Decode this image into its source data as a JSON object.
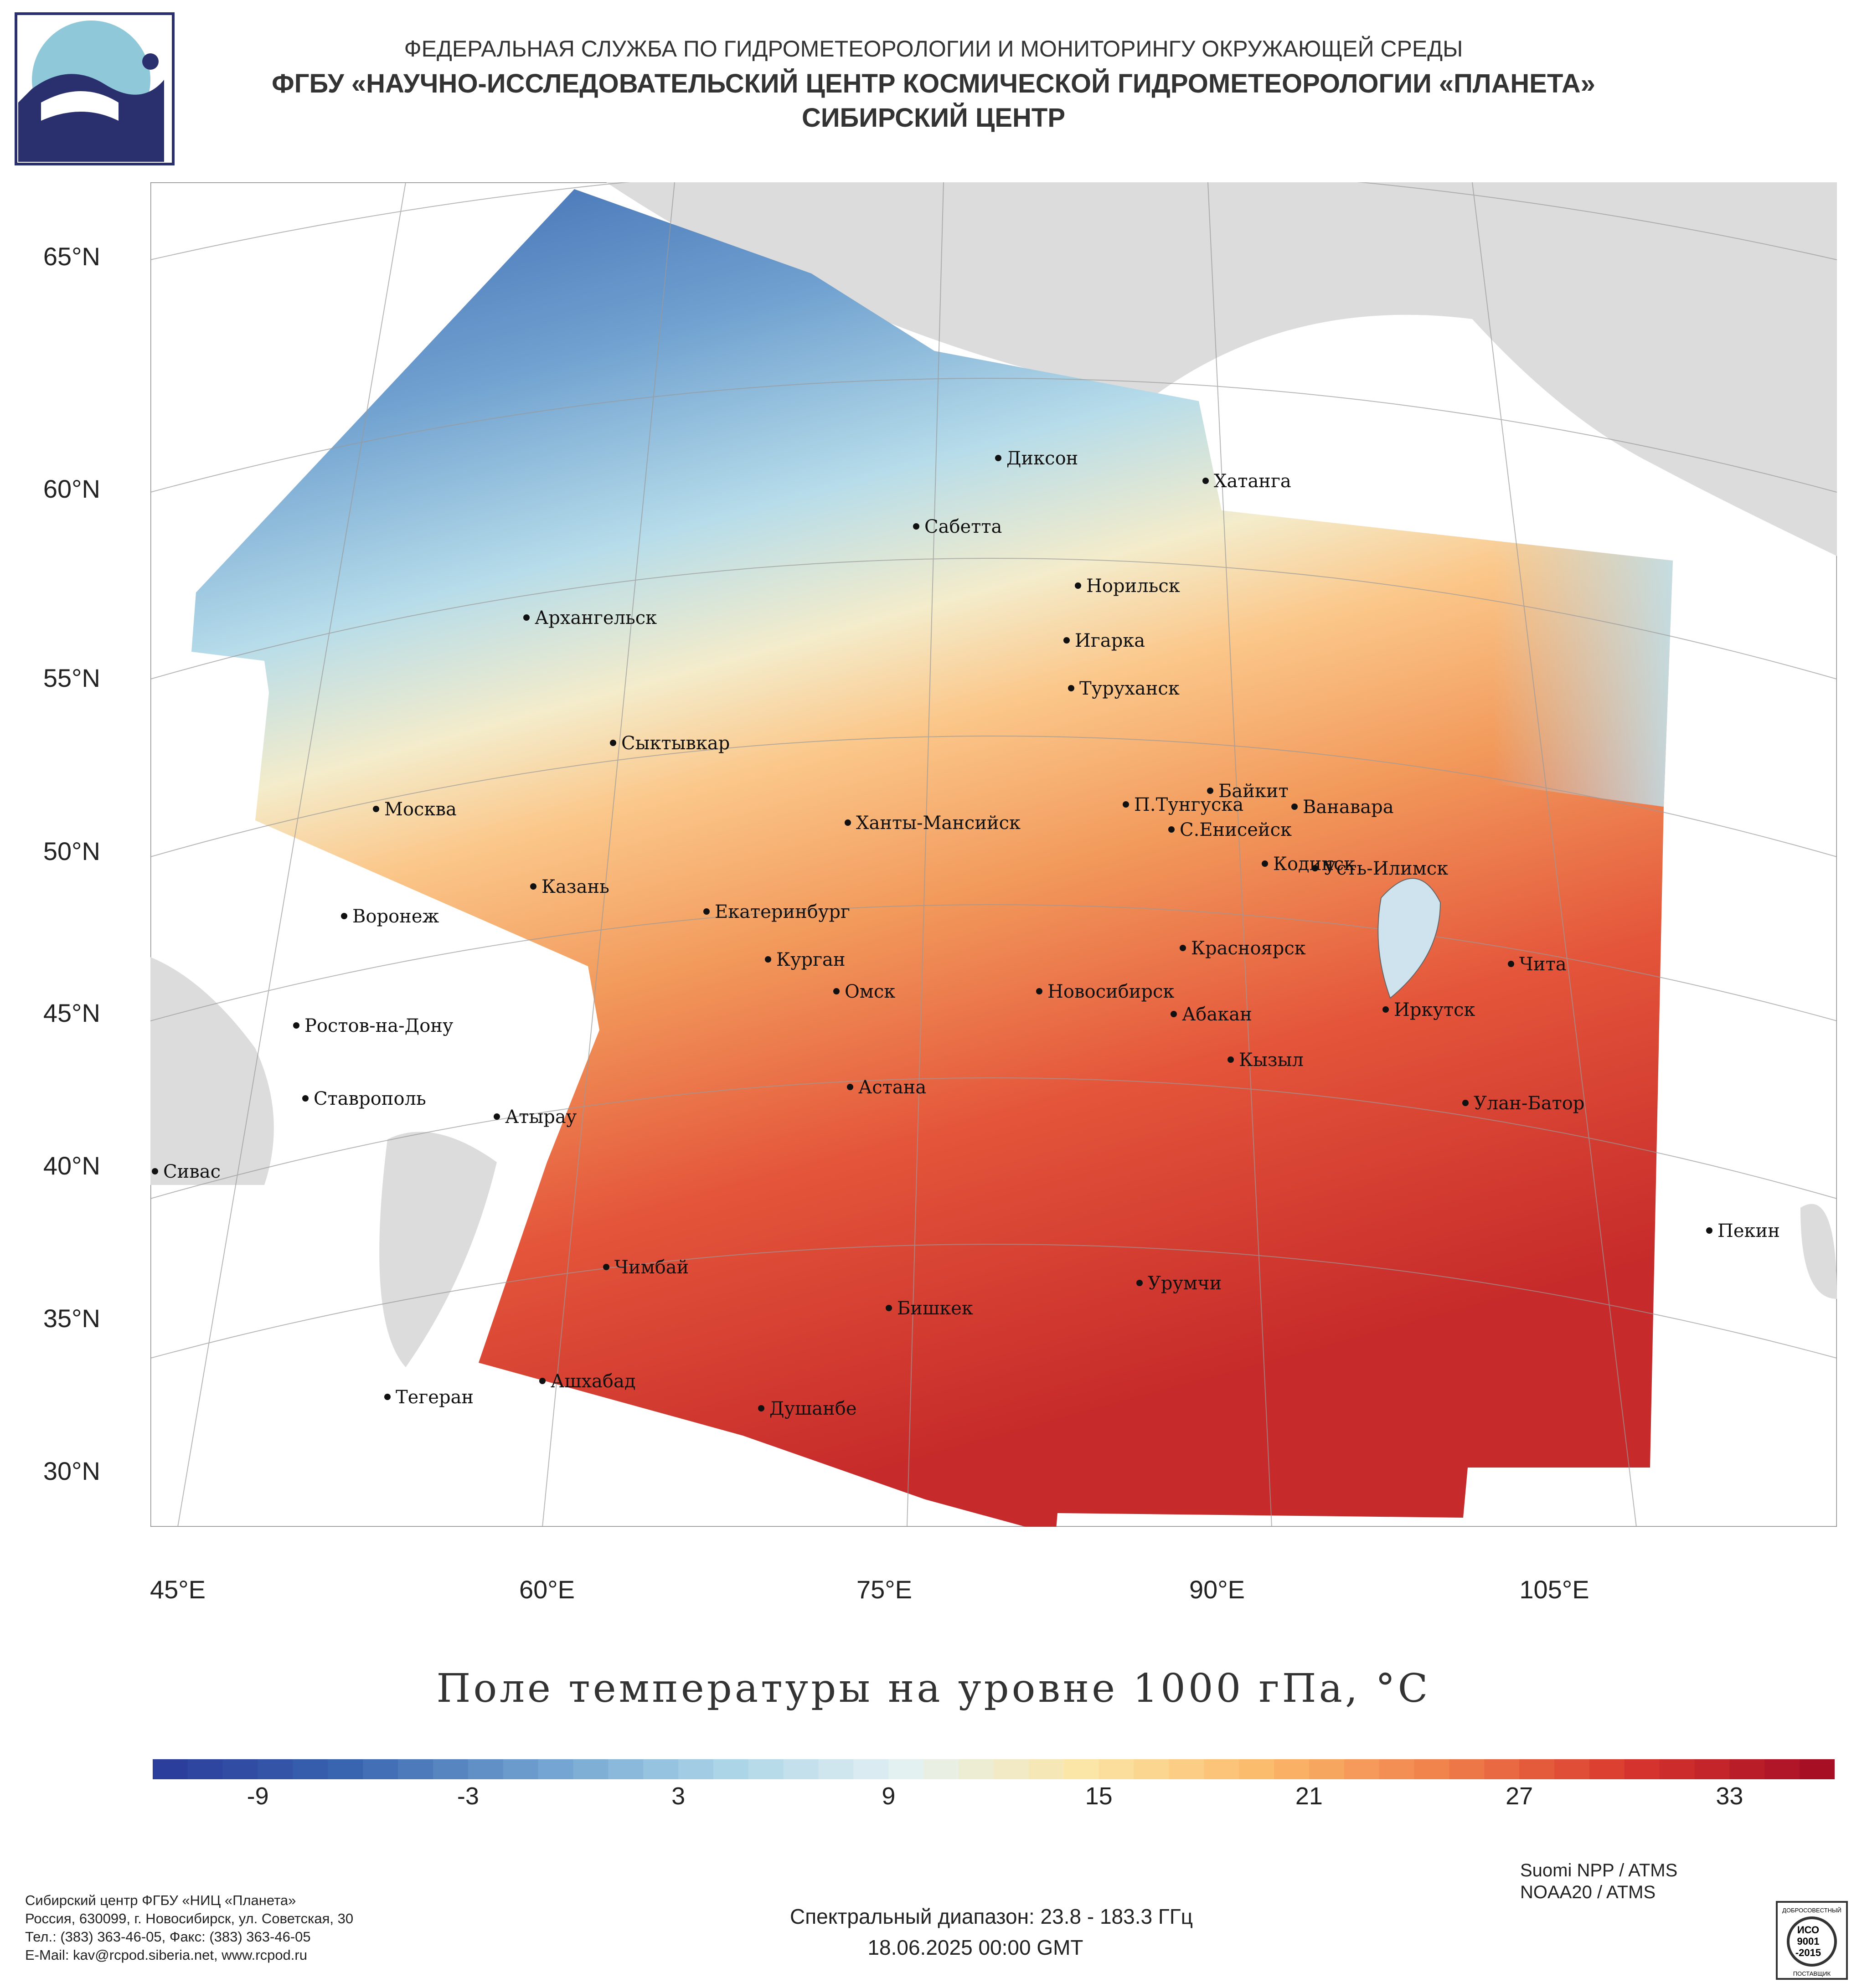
{
  "header": {
    "line1": "ФЕДЕРАЛЬНАЯ СЛУЖБА ПО ГИДРОМЕТЕОРОЛОГИИ И МОНИТОРИНГУ ОКРУЖАЮЩЕЙ СРЕДЫ",
    "line2": "ФГБУ «НАУЧНО-ИССЛЕДОВАТЕЛЬСКИЙ ЦЕНТР КОСМИЧЕСКОЙ ГИДРОМЕТЕОРОЛОГИИ «ПЛАНЕТА»",
    "line3": "СИБИРСКИЙ ЦЕНТР"
  },
  "map": {
    "lat_labels": [
      "65°N",
      "60°N",
      "55°N",
      "50°N",
      "45°N",
      "40°N",
      "35°N",
      "30°N"
    ],
    "lon_labels": [
      "45°E",
      "60°E",
      "75°E",
      "90°E",
      "105°E"
    ],
    "cities": [
      {
        "name": "Диксон"
      },
      {
        "name": "Хатанга"
      },
      {
        "name": "Сабетта"
      },
      {
        "name": "Норильск"
      },
      {
        "name": "Архангельск"
      },
      {
        "name": "Игарка"
      },
      {
        "name": "Туруханск"
      },
      {
        "name": "Сыктывкар"
      },
      {
        "name": "Байкит"
      },
      {
        "name": "Москва"
      },
      {
        "name": "П.Тунгуска"
      },
      {
        "name": "Ванавара"
      },
      {
        "name": "Ханты-Мансийск"
      },
      {
        "name": "С.Енисейск"
      },
      {
        "name": "Кодинск"
      },
      {
        "name": "Усть-Илимск"
      },
      {
        "name": "Казань"
      },
      {
        "name": "Екатеринбург"
      },
      {
        "name": "Воронеж"
      },
      {
        "name": "Красноярск"
      },
      {
        "name": "Курган"
      },
      {
        "name": "Чита"
      },
      {
        "name": "Омск"
      },
      {
        "name": "Новосибирск"
      },
      {
        "name": "Иркутск"
      },
      {
        "name": "Ростов-на-Дону"
      },
      {
        "name": "Абакан"
      },
      {
        "name": "Кызыл"
      },
      {
        "name": "Ставрополь"
      },
      {
        "name": "Астана"
      },
      {
        "name": "Улан-Батор"
      },
      {
        "name": "Атырау"
      },
      {
        "name": "Сивас"
      },
      {
        "name": "Пекин"
      },
      {
        "name": "Чимбай"
      },
      {
        "name": "Урумчи"
      },
      {
        "name": "Бишкек"
      },
      {
        "name": "Ашхабад"
      },
      {
        "name": "Тегеран"
      },
      {
        "name": "Душанбе"
      }
    ]
  },
  "title": "Поле температуры на уровне 1000 гПа, °С",
  "colorbar": {
    "min": -12,
    "max": 36,
    "ticks": [
      "-9",
      "-3",
      "3",
      "9",
      "15",
      "21",
      "27",
      "33"
    ],
    "colors": [
      "#2b3e9b",
      "#3a66b0",
      "#6fa0cf",
      "#a9d3e7",
      "#e4f1f3",
      "#fbe6a6",
      "#fbb96a",
      "#f07d4a",
      "#d7352d",
      "#a70f25"
    ]
  },
  "footer": {
    "left_lines": [
      "Сибирский центр ФГБУ «НИЦ «Планета»",
      "Россия, 630099, г. Новосибирск, ул. Советская, 30",
      "Тел.: (383) 363-46-05, Факс: (383) 363-46-05",
      "E-Mail: kav@rcpod.siberia.net, www.rcpod.ru"
    ],
    "satellites": [
      "Suomi NPP / ATMS",
      "NOAA20 / ATMS"
    ],
    "spectral": "Спектральный диапазон: 23.8 - 183.3 ГГц",
    "datetime": "18.06.2025 00:00 GMT"
  },
  "iso_badge": {
    "top": "ДОБРОСОВЕСТНЫЙ",
    "line1": "ИСО",
    "line2": "9001",
    "line3": "-2015",
    "bottom": "ПОСТАВЩИК"
  }
}
